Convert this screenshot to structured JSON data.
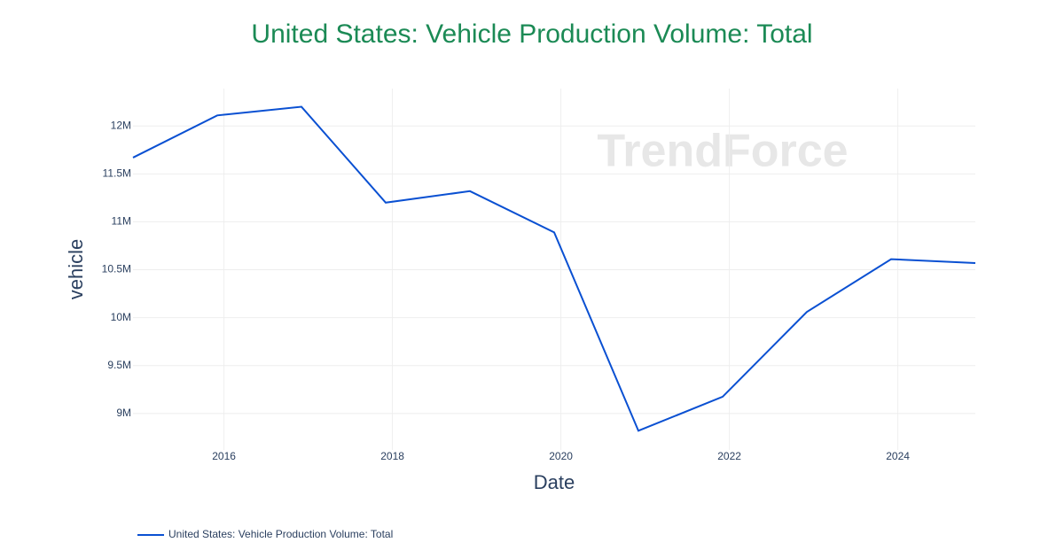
{
  "chart_data": {
    "type": "line",
    "title": "United States: Vehicle Production Volume: Total",
    "x_label": "Date",
    "y_label": "vehicle",
    "watermark": "TrendForce",
    "x": [
      2014.92,
      2015.92,
      2016.92,
      2017.92,
      2018.92,
      2019.92,
      2020.92,
      2021.92,
      2022.92,
      2023.92,
      2024.92
    ],
    "series": [
      {
        "name": "United States: Vehicle Production Volume: Total",
        "color": "#0a50d2",
        "values": [
          11670000,
          12110000,
          12200000,
          11200000,
          11320000,
          10890000,
          8820000,
          9175000,
          10060000,
          10610000,
          10570000
        ]
      }
    ],
    "xlim": [
      2014.92,
      2024.92
    ],
    "xticks": [
      2016,
      2018,
      2020,
      2022,
      2024
    ],
    "ylim": [
      8620000,
      12390000
    ],
    "yticks": [
      {
        "value": 9000000,
        "label": "9M"
      },
      {
        "value": 9500000,
        "label": "9.5M"
      },
      {
        "value": 10000000,
        "label": "10M"
      },
      {
        "value": 10500000,
        "label": "10.5M"
      },
      {
        "value": 11000000,
        "label": "11M"
      },
      {
        "value": 11500000,
        "label": "11.5M"
      },
      {
        "value": 12000000,
        "label": "12M"
      }
    ],
    "grid": true,
    "legend": "bottom-left"
  }
}
